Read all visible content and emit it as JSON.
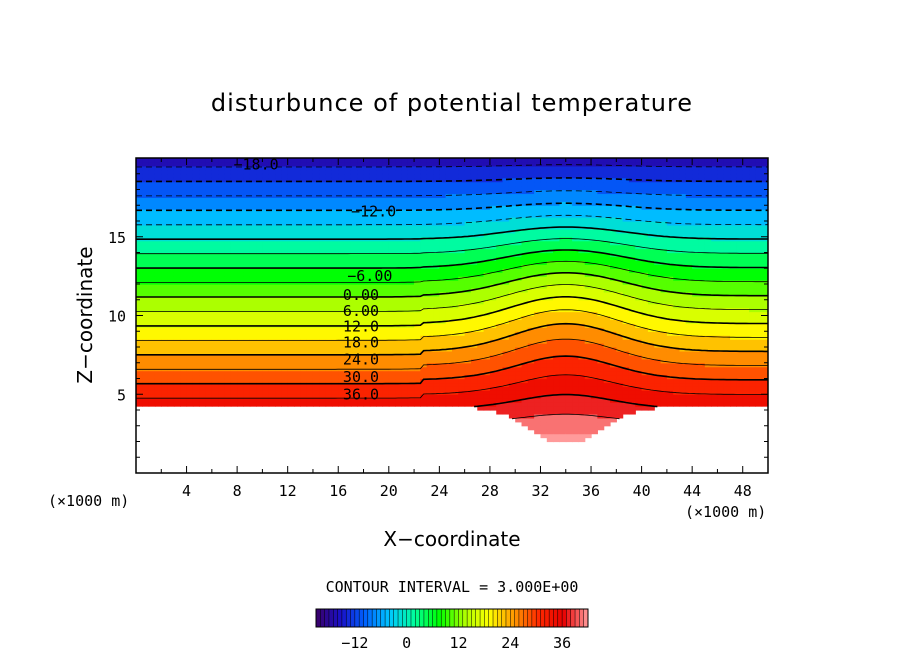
{
  "chart_data": {
    "type": "heatmap",
    "title": "disturbunce of potential temperature",
    "xlabel": "X−coordinate",
    "ylabel": "Z−coordinate",
    "x_unit_left": "(×1000 m)",
    "x_unit_right": "(×1000 m)",
    "xlim": [
      0,
      50
    ],
    "ylim": [
      0,
      20
    ],
    "x_ticks": [
      "4",
      "8",
      "12",
      "16",
      "20",
      "24",
      "28",
      "32",
      "36",
      "40",
      "44",
      "48"
    ],
    "y_ticks": [
      "5",
      "10",
      "15"
    ],
    "contour_interval_text": "CONTOUR INTERVAL = 3.000E+00",
    "contour_labels": [
      {
        "text": "−18.0",
        "x": 9.5,
        "z": 19.6
      },
      {
        "text": "−12.0",
        "x": 18.8,
        "z": 16.6
      },
      {
        "text": "−6.00",
        "x": 18.5,
        "z": 12.5
      },
      {
        "text": "0.00",
        "x": 17.8,
        "z": 11.3
      },
      {
        "text": "6.00",
        "x": 17.8,
        "z": 10.3
      },
      {
        "text": "12.0",
        "x": 17.8,
        "z": 9.3
      },
      {
        "text": "18.0",
        "x": 17.8,
        "z": 8.3
      },
      {
        "text": "24.0",
        "x": 17.8,
        "z": 7.2
      },
      {
        "text": "30.0",
        "x": 17.8,
        "z": 6.1
      },
      {
        "text": "36.0",
        "x": 17.8,
        "z": 5.0
      }
    ],
    "colorbar": {
      "ticks": [
        "−12",
        "0",
        "12",
        "24",
        "36"
      ],
      "range": [
        -21,
        42
      ],
      "levels": 21
    },
    "field": {
      "base_at_bottom": 42,
      "lapse_per_km": 3.27,
      "bump_center_x": 34,
      "bump_amplitude": 6,
      "terrain_step_x": 22.5,
      "unfilled_below": 4.3
    },
    "colors": {
      "stops": [
        "#3a0068",
        "#1a10c8",
        "#0064ff",
        "#00c8ff",
        "#00ff9a",
        "#00ff00",
        "#aaff00",
        "#ffff00",
        "#ff9900",
        "#ff2a00",
        "#e80000",
        "#ff9a9a"
      ]
    }
  }
}
